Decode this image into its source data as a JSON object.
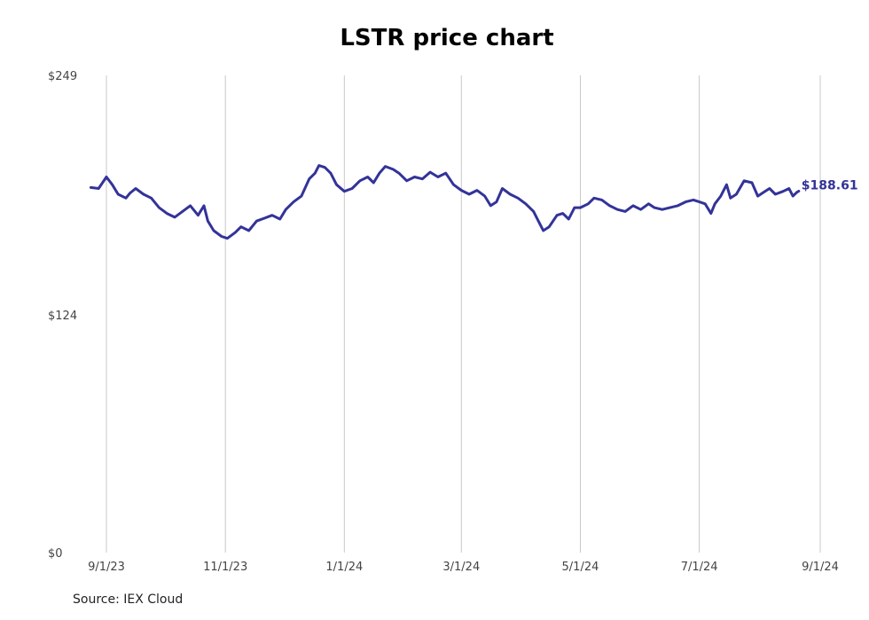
{
  "chart_data": {
    "type": "line",
    "title": "LSTR price chart",
    "source": "Source: IEX Cloud",
    "ylim": [
      0,
      249
    ],
    "y_ticks": [
      "$249",
      "$124",
      "$0"
    ],
    "y_tick_values": [
      249,
      124,
      0
    ],
    "x_ticks": [
      "9/1/23",
      "11/1/23",
      "1/1/24",
      "3/1/24",
      "5/1/24",
      "7/1/24",
      "9/1/24"
    ],
    "x_tick_dates": [
      "2023-09-01",
      "2023-11-01",
      "2024-01-01",
      "2024-03-01",
      "2024-05-01",
      "2024-07-01",
      "2024-09-01"
    ],
    "xlim": [
      "2023-08-22",
      "2024-09-01"
    ],
    "grid": "vertical",
    "last_value_label": "$188.61",
    "series": [
      {
        "color": "#333399",
        "points": [
          [
            "2023-08-24",
            190.5
          ],
          [
            "2023-08-28",
            190.0
          ],
          [
            "2023-08-30",
            193.0
          ],
          [
            "2023-09-01",
            196.0
          ],
          [
            "2023-09-04",
            192.0
          ],
          [
            "2023-09-07",
            187.0
          ],
          [
            "2023-09-11",
            185.0
          ],
          [
            "2023-09-13",
            187.5
          ],
          [
            "2023-09-16",
            190.0
          ],
          [
            "2023-09-20",
            187.0
          ],
          [
            "2023-09-24",
            185.0
          ],
          [
            "2023-09-28",
            180.0
          ],
          [
            "2023-10-02",
            177.0
          ],
          [
            "2023-10-06",
            175.0
          ],
          [
            "2023-10-10",
            178.0
          ],
          [
            "2023-10-14",
            181.0
          ],
          [
            "2023-10-18",
            176.0
          ],
          [
            "2023-10-21",
            181.0
          ],
          [
            "2023-10-23",
            173.0
          ],
          [
            "2023-10-26",
            168.0
          ],
          [
            "2023-10-30",
            165.0
          ],
          [
            "2023-11-02",
            164.0
          ],
          [
            "2023-11-06",
            167.0
          ],
          [
            "2023-11-09",
            170.0
          ],
          [
            "2023-11-13",
            168.0
          ],
          [
            "2023-11-17",
            173.0
          ],
          [
            "2023-11-21",
            174.5
          ],
          [
            "2023-11-25",
            176.0
          ],
          [
            "2023-11-29",
            174.0
          ],
          [
            "2023-12-02",
            179.0
          ],
          [
            "2023-12-06",
            183.0
          ],
          [
            "2023-12-10",
            186.0
          ],
          [
            "2023-12-14",
            195.0
          ],
          [
            "2023-12-17",
            198.0
          ],
          [
            "2023-12-19",
            202.0
          ],
          [
            "2023-12-22",
            201.0
          ],
          [
            "2023-12-25",
            198.0
          ],
          [
            "2023-12-28",
            192.0
          ],
          [
            "2024-01-01",
            188.5
          ],
          [
            "2024-01-05",
            190.0
          ],
          [
            "2024-01-09",
            194.0
          ],
          [
            "2024-01-13",
            196.0
          ],
          [
            "2024-01-16",
            193.0
          ],
          [
            "2024-01-19",
            198.0
          ],
          [
            "2024-01-22",
            201.5
          ],
          [
            "2024-01-26",
            200.0
          ],
          [
            "2024-01-29",
            198.0
          ],
          [
            "2024-02-02",
            194.0
          ],
          [
            "2024-02-06",
            196.0
          ],
          [
            "2024-02-10",
            195.0
          ],
          [
            "2024-02-14",
            198.5
          ],
          [
            "2024-02-18",
            196.0
          ],
          [
            "2024-02-22",
            198.0
          ],
          [
            "2024-02-26",
            192.0
          ],
          [
            "2024-03-01",
            189.0
          ],
          [
            "2024-03-05",
            187.0
          ],
          [
            "2024-03-09",
            189.0
          ],
          [
            "2024-03-13",
            186.0
          ],
          [
            "2024-03-16",
            181.0
          ],
          [
            "2024-03-19",
            183.0
          ],
          [
            "2024-03-22",
            190.0
          ],
          [
            "2024-03-26",
            187.0
          ],
          [
            "2024-03-30",
            185.0
          ],
          [
            "2024-04-03",
            182.0
          ],
          [
            "2024-04-07",
            178.0
          ],
          [
            "2024-04-10",
            172.0
          ],
          [
            "2024-04-12",
            168.0
          ],
          [
            "2024-04-15",
            170.0
          ],
          [
            "2024-04-19",
            176.0
          ],
          [
            "2024-04-22",
            177.0
          ],
          [
            "2024-04-25",
            174.0
          ],
          [
            "2024-04-28",
            180.0
          ],
          [
            "2024-05-01",
            180.0
          ],
          [
            "2024-05-05",
            182.0
          ],
          [
            "2024-05-08",
            185.0
          ],
          [
            "2024-05-12",
            184.0
          ],
          [
            "2024-05-16",
            181.0
          ],
          [
            "2024-05-20",
            179.0
          ],
          [
            "2024-05-24",
            178.0
          ],
          [
            "2024-05-28",
            181.0
          ],
          [
            "2024-06-01",
            179.0
          ],
          [
            "2024-06-05",
            182.0
          ],
          [
            "2024-06-08",
            180.0
          ],
          [
            "2024-06-12",
            179.0
          ],
          [
            "2024-06-16",
            180.0
          ],
          [
            "2024-06-20",
            181.0
          ],
          [
            "2024-06-24",
            183.0
          ],
          [
            "2024-06-28",
            184.0
          ],
          [
            "2024-07-01",
            183.0
          ],
          [
            "2024-07-04",
            182.0
          ],
          [
            "2024-07-07",
            177.0
          ],
          [
            "2024-07-09",
            182.0
          ],
          [
            "2024-07-12",
            186.0
          ],
          [
            "2024-07-15",
            192.0
          ],
          [
            "2024-07-17",
            185.0
          ],
          [
            "2024-07-20",
            187.0
          ],
          [
            "2024-07-24",
            194.0
          ],
          [
            "2024-07-28",
            193.0
          ],
          [
            "2024-07-31",
            186.0
          ],
          [
            "2024-08-03",
            188.0
          ],
          [
            "2024-08-06",
            190.0
          ],
          [
            "2024-08-09",
            187.0
          ],
          [
            "2024-08-13",
            188.5
          ],
          [
            "2024-08-16",
            190.0
          ],
          [
            "2024-08-18",
            186.0
          ],
          [
            "2024-08-20",
            188.0
          ],
          [
            "2024-08-21",
            188.61
          ]
        ]
      }
    ]
  }
}
